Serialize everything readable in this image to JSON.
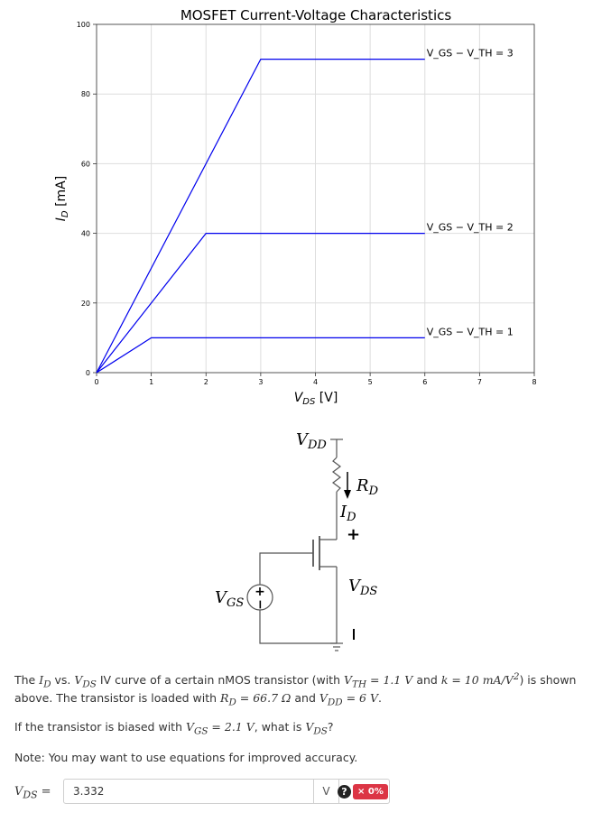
{
  "chart_data": {
    "type": "line",
    "title": "MOSFET Current-Voltage Characteristics",
    "xlabel": "V_DS [V]",
    "ylabel": "I_D [mA]",
    "xlim": [
      0,
      8
    ],
    "ylim": [
      0,
      100
    ],
    "x_ticks": [
      "0",
      "1",
      "2",
      "3",
      "4",
      "5",
      "6",
      "7",
      "8"
    ],
    "y_ticks": [
      "0",
      "20",
      "40",
      "60",
      "80",
      "100"
    ],
    "grid": true,
    "line_color": "#0000ee",
    "series": [
      {
        "name": "V_GS − V_TH = 1",
        "x": [
          0,
          1,
          6
        ],
        "y": [
          0,
          10,
          10
        ]
      },
      {
        "name": "V_GS − V_TH = 2",
        "x": [
          0,
          2,
          6
        ],
        "y": [
          0,
          40,
          40
        ]
      },
      {
        "name": "V_GS − V_TH = 3",
        "x": [
          0,
          3,
          6
        ],
        "y": [
          0,
          90,
          90
        ]
      }
    ]
  },
  "circuit": {
    "vdd_label": "V",
    "vdd_sub": "DD",
    "rd_label": "R",
    "rd_sub": "D",
    "id_label": "I",
    "id_sub": "D",
    "vds_label": "V",
    "vds_sub": "DS",
    "vgs_label": "V",
    "vgs_sub": "GS",
    "plus": "+",
    "minus": "−"
  },
  "problem": {
    "line1_a": "The ",
    "line1_id": "I",
    "line1_id_sub": "D",
    "line1_b": " vs. ",
    "line1_vds": "V",
    "line1_vds_sub": "DS",
    "line1_c": " IV curve of a certain nMOS transistor (with ",
    "line1_vth": "V",
    "line1_vth_sub": "TH",
    "line1_vth_val": " = 1.1 V",
    "line1_d": " and ",
    "line1_k": "k",
    "line1_k_val": " = 10 mA/V",
    "line1_k_exp": "2",
    "line1_e": ") is shown",
    "line2_a": "above. The transistor is loaded with ",
    "line2_rd": "R",
    "line2_rd_sub": "D",
    "line2_rd_val": " = 66.7 Ω",
    "line2_b": " and ",
    "line2_vdd": "V",
    "line2_vdd_sub": "DD",
    "line2_vdd_val": " = 6 V",
    "line2_c": ".",
    "question_a": "If the transistor is biased with ",
    "question_vgs": "V",
    "question_vgs_sub": "GS",
    "question_vgs_val": " = 2.1 V",
    "question_b": ", what is ",
    "question_vds": "V",
    "question_vds_sub": "DS",
    "question_c": "?",
    "note": "Note: You may want to use equations for improved accuracy."
  },
  "answer": {
    "label_var": "V",
    "label_sub": "DS",
    "label_eq": " =",
    "value": "3.332",
    "unit": "V",
    "help_icon": "?",
    "score": "× 0%",
    "score_color": "#dc3545"
  }
}
